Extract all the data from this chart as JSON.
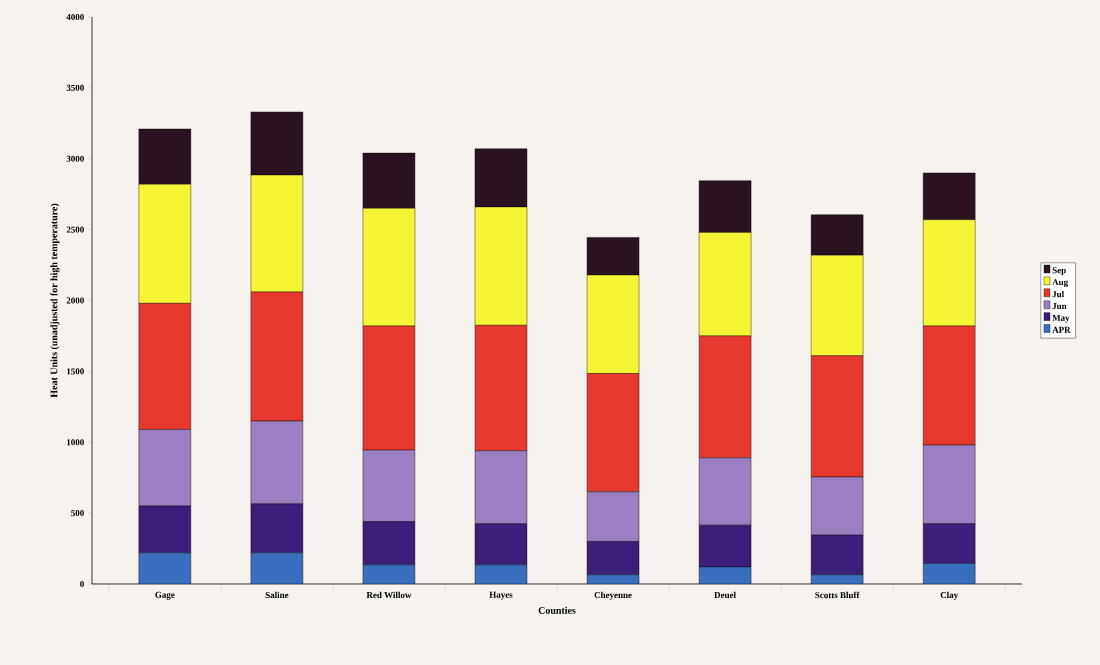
{
  "chart_data": {
    "type": "bar",
    "stacked": true,
    "xlabel": "Counties",
    "ylabel": "Heat Units (unadjusted for high temperature)",
    "categories": [
      "Gage",
      "Saline",
      "Red Willow",
      "Hayes",
      "Cheyenne",
      "Deuel",
      "Scotts Bluff",
      "Clay"
    ],
    "series": [
      {
        "name": "APR",
        "color": "#3a6fc0",
        "values": [
          220,
          220,
          135,
          135,
          65,
          120,
          65,
          145
        ]
      },
      {
        "name": "May",
        "color": "#3c1f7a",
        "values": [
          330,
          345,
          305,
          290,
          235,
          295,
          280,
          280
        ]
      },
      {
        "name": "Jun",
        "color": "#9b7fc0",
        "values": [
          540,
          585,
          505,
          515,
          350,
          475,
          410,
          555
        ]
      },
      {
        "name": "Jul",
        "color": "#e8392f",
        "values": [
          890,
          910,
          875,
          885,
          835,
          860,
          855,
          840
        ]
      },
      {
        "name": "Aug",
        "color": "#f5f535",
        "values": [
          840,
          825,
          830,
          835,
          695,
          730,
          710,
          750
        ]
      },
      {
        "name": "Sep",
        "color": "#2a1220",
        "values": [
          390,
          445,
          390,
          410,
          265,
          365,
          285,
          330
        ]
      }
    ],
    "ylim": [
      0,
      4000
    ],
    "yticks": [
      0,
      500,
      1000,
      1500,
      2000,
      2500,
      3000,
      3500,
      4000
    ],
    "grid": false,
    "legend": "right"
  }
}
